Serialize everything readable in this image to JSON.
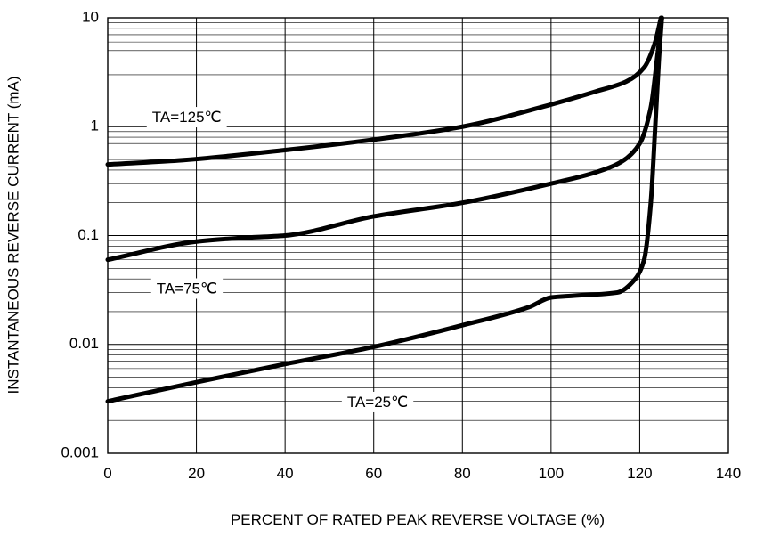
{
  "chart_data": {
    "type": "line",
    "title": "",
    "xlabel": "PERCENT OF RATED PEAK REVERSE VOLTAGE (%)",
    "ylabel": "INSTANTANEOUS REVERSE CURRENT (mA)",
    "xlim": [
      0,
      140
    ],
    "ylim": [
      0.001,
      10
    ],
    "yscale": "log",
    "grid": true,
    "x_ticks": [
      0,
      20,
      40,
      60,
      80,
      100,
      120,
      140
    ],
    "x_tick_labels": [
      "0",
      "20",
      "40",
      "60",
      "80",
      "100",
      "120",
      "140"
    ],
    "y_ticks": [
      0.001,
      0.01,
      0.1,
      1,
      10
    ],
    "y_tick_labels": [
      "0.001",
      "0.01",
      "0.1",
      "1",
      "10"
    ],
    "series": [
      {
        "name": "TA=125℃",
        "x": [
          0,
          16,
          40,
          60,
          80,
          100,
          110,
          117,
          121,
          123.5,
          124.8
        ],
        "y": [
          0.45,
          0.49,
          0.61,
          0.76,
          1.0,
          1.6,
          2.1,
          2.6,
          3.5,
          6.0,
          10.0
        ]
      },
      {
        "name": "TA=75℃",
        "x": [
          0,
          20,
          30,
          40,
          60,
          80,
          100,
          110,
          116,
          120,
          122.5,
          124,
          125
        ],
        "y": [
          0.06,
          0.088,
          0.095,
          0.1,
          0.15,
          0.2,
          0.3,
          0.38,
          0.48,
          0.7,
          1.5,
          4.5,
          10.0
        ]
      },
      {
        "name": "TA=25℃",
        "x": [
          0,
          20,
          40,
          60,
          80,
          95,
          100,
          105,
          115,
          119,
          121,
          122.5,
          123.5,
          124.3,
          125
        ],
        "y": [
          0.003,
          0.0045,
          0.0066,
          0.0095,
          0.015,
          0.022,
          0.027,
          0.028,
          0.03,
          0.04,
          0.06,
          0.2,
          1.0,
          4.0,
          10.0
        ]
      }
    ],
    "annotations": [
      {
        "text": "TA=125℃",
        "x": 10,
        "y": 1.2
      },
      {
        "text": "TA=75℃",
        "x": 11,
        "y": 0.032
      },
      {
        "text": "TA=25℃",
        "x": 54,
        "y": 0.0029
      }
    ]
  }
}
